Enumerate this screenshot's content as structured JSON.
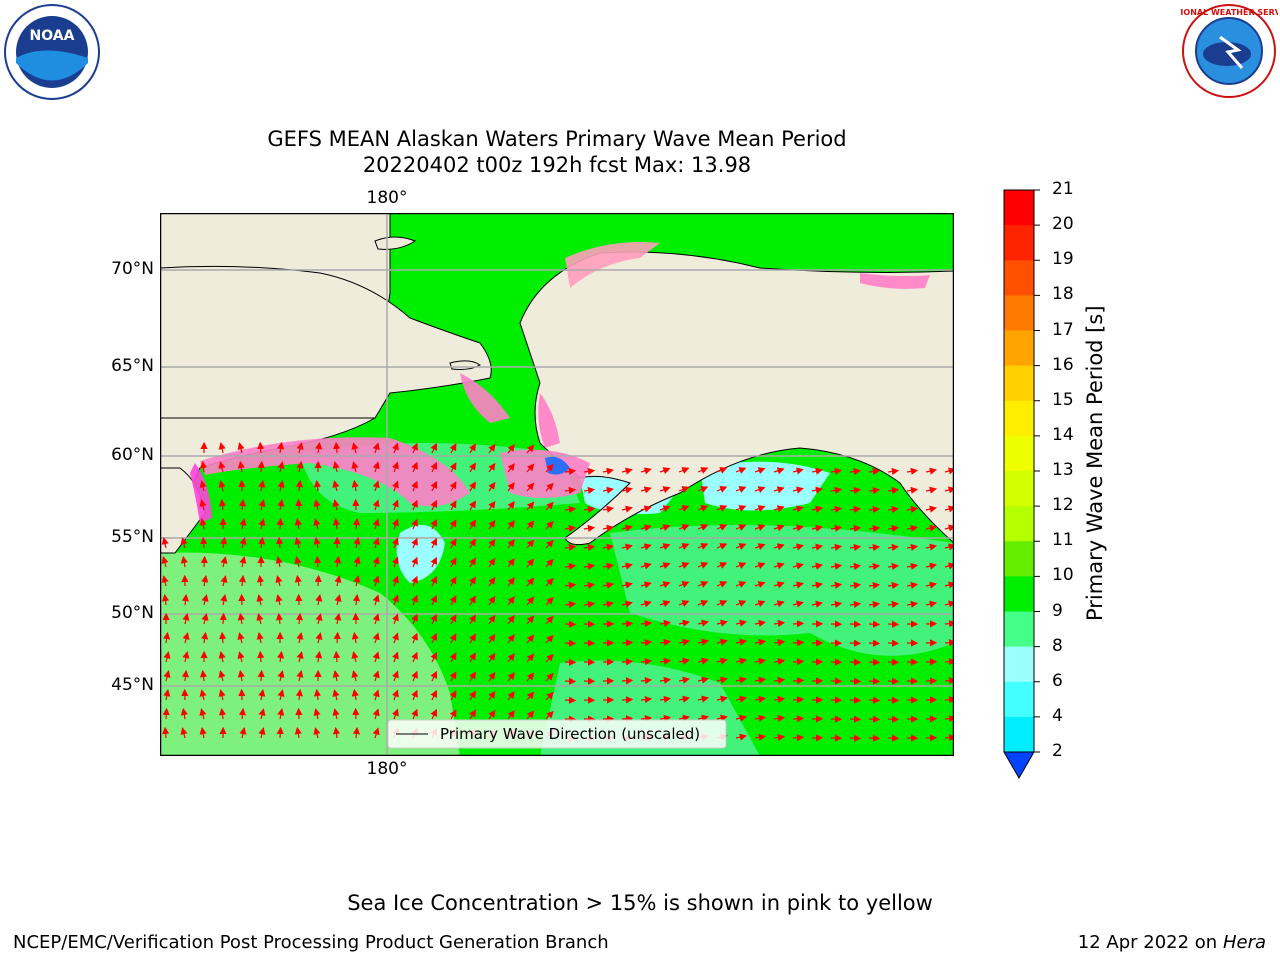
{
  "title": {
    "line1": "GEFS MEAN Alaskan Waters Primary Wave Mean Period",
    "line2": "20220402 t00z 192h fcst   Max: 13.98"
  },
  "logos": {
    "left": "NOAA",
    "right": "NATIONAL WEATHER SERVICE"
  },
  "map": {
    "lat_labels": [
      "70°N",
      "65°N",
      "60°N",
      "55°N",
      "50°N",
      "45°N"
    ],
    "lon_label_top": "180°",
    "lon_label_bottom": "180°",
    "legend_text": "Primary Wave Direction (unscaled)",
    "colors": {
      "land": "#efecdc",
      "ocean_green": "#00ee00",
      "ocean_light_green": "#7ef07e",
      "ocean_mid_green": "#42f27a",
      "arrow": "#ff0000",
      "ice": "#ff7fc8"
    }
  },
  "colorbar": {
    "label": "Primary Wave Mean Period [s]",
    "ticks": [
      "21",
      "20",
      "19",
      "18",
      "17",
      "16",
      "15",
      "14",
      "13",
      "12",
      "11",
      "10",
      "9",
      "8",
      "6",
      "4",
      "2"
    ],
    "colors": [
      "#ff0000",
      "#ff2400",
      "#ff5000",
      "#ff7a00",
      "#ffa500",
      "#ffd000",
      "#ffee00",
      "#eeff00",
      "#d4ff00",
      "#b4ff00",
      "#66ee00",
      "#00ee00",
      "#44ff88",
      "#99ffff",
      "#44ffff",
      "#00eeff",
      "#0099ff",
      "#0044ff"
    ]
  },
  "footer": {
    "ice_note": "Sea Ice Concentration > 15% is shown in pink to yellow",
    "branch": "NCEP/EMC/Verification Post Processing Product Generation Branch",
    "date": "12 Apr 2022 on",
    "host": "Hera"
  }
}
